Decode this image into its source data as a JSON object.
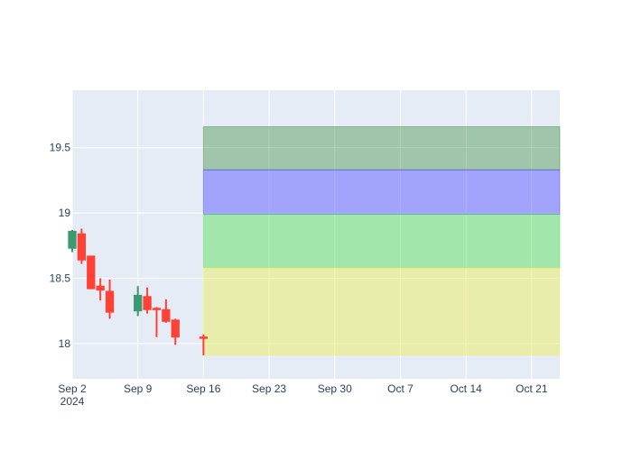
{
  "chart_data": {
    "type": "candlestick",
    "title": "",
    "xlabel": "",
    "ylabel": "",
    "x_range": [
      "2024-09-02",
      "2024-10-24"
    ],
    "ylim": [
      17.73,
      19.94
    ],
    "grid": true,
    "x_ticks": [
      {
        "date": "2024-09-02",
        "label": "Sep 2",
        "sublabel": "2024"
      },
      {
        "date": "2024-09-09",
        "label": "Sep 9"
      },
      {
        "date": "2024-09-16",
        "label": "Sep 16"
      },
      {
        "date": "2024-09-23",
        "label": "Sep 23"
      },
      {
        "date": "2024-09-30",
        "label": "Sep 30"
      },
      {
        "date": "2024-10-07",
        "label": "Oct 7"
      },
      {
        "date": "2024-10-14",
        "label": "Oct 14"
      },
      {
        "date": "2024-10-21",
        "label": "Oct 21"
      }
    ],
    "y_ticks": [
      {
        "value": 18.0,
        "label": "18"
      },
      {
        "value": 18.5,
        "label": "18.5"
      },
      {
        "value": 19.0,
        "label": "19"
      },
      {
        "value": 19.5,
        "label": "19.5"
      }
    ],
    "candles": [
      {
        "date": "2024-09-02",
        "open": 18.73,
        "high": 18.87,
        "low": 18.7,
        "close": 18.86
      },
      {
        "date": "2024-09-03",
        "open": 18.84,
        "high": 18.88,
        "low": 18.61,
        "close": 18.64
      },
      {
        "date": "2024-09-04",
        "open": 18.67,
        "high": 18.67,
        "low": 18.42,
        "close": 18.42
      },
      {
        "date": "2024-09-05",
        "open": 18.44,
        "high": 18.5,
        "low": 18.33,
        "close": 18.41
      },
      {
        "date": "2024-09-06",
        "open": 18.4,
        "high": 18.49,
        "low": 18.19,
        "close": 18.24
      },
      {
        "date": "2024-09-09",
        "open": 18.25,
        "high": 18.44,
        "low": 18.21,
        "close": 18.37
      },
      {
        "date": "2024-09-10",
        "open": 18.36,
        "high": 18.43,
        "low": 18.23,
        "close": 18.26
      },
      {
        "date": "2024-09-11",
        "open": 18.27,
        "high": 18.28,
        "low": 18.05,
        "close": 18.26
      },
      {
        "date": "2024-09-12",
        "open": 18.26,
        "high": 18.34,
        "low": 18.16,
        "close": 18.17
      },
      {
        "date": "2024-09-13",
        "open": 18.18,
        "high": 18.19,
        "low": 17.99,
        "close": 18.05
      },
      {
        "date": "2024-09-16",
        "open": 18.05,
        "high": 18.07,
        "low": 17.91,
        "close": 18.04
      }
    ],
    "candle_colors": {
      "increasing": "#3d9970",
      "decreasing": "#ff4136"
    },
    "bands": [
      {
        "from": 19.33,
        "to": 19.66,
        "color": "#3d8b3d",
        "opacity": 0.4
      },
      {
        "from": 18.99,
        "to": 19.33,
        "color": "#4d4dff",
        "opacity": 0.45
      },
      {
        "from": 18.58,
        "to": 18.99,
        "color": "#52e052",
        "opacity": 0.45
      },
      {
        "from": 17.91,
        "to": 18.58,
        "color": "#ecef70",
        "opacity": 0.55
      }
    ],
    "bands_start": "2024-09-16",
    "plot_background": "#e5ecf6",
    "grid_color": "#ffffff",
    "tick_color": "#2a3f5f"
  }
}
